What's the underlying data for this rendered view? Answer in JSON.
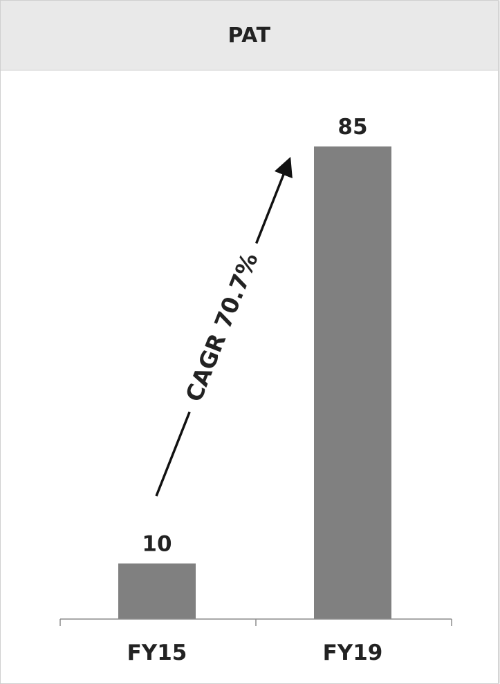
{
  "chart_data": {
    "type": "bar",
    "title": "PAT",
    "categories": [
      "FY15",
      "FY19"
    ],
    "values": [
      10,
      85
    ],
    "data_labels": [
      "10",
      "85"
    ],
    "annotation": "CAGR 70.7%",
    "ylim": [
      0,
      100
    ],
    "grid": false,
    "legend": "none",
    "bar_color": "#808080"
  }
}
